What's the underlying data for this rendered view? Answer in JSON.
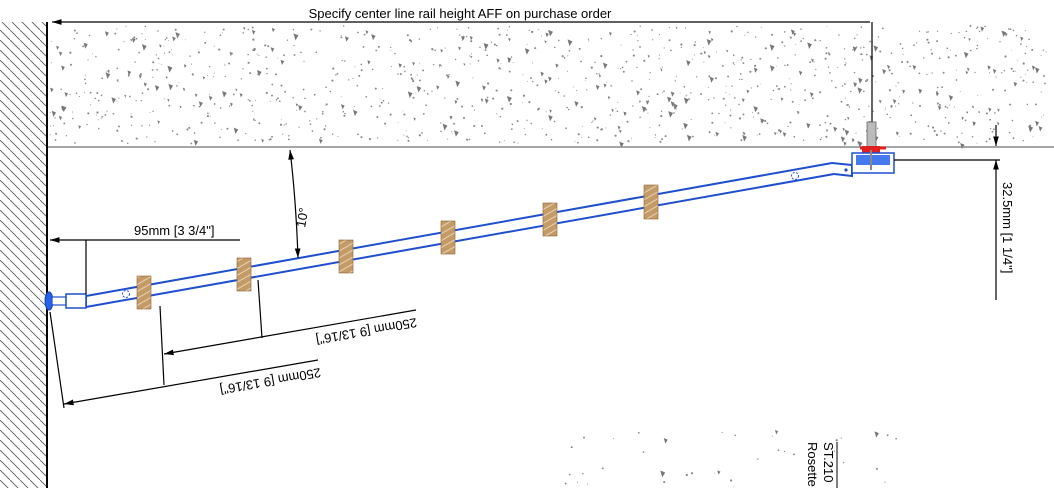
{
  "dimensions": {
    "top_note": "Specify center line rail height AFF on purchase order",
    "wall_offset": "95mm [3 3/4\"]",
    "angle": "10°",
    "spacing_inner": "250mm [9 13/16\"]",
    "spacing_outer": "250mm [9 13/16\"]",
    "ceiling_offset": "32.5mm [1 1/4\"]"
  },
  "callout": {
    "code": "ST.210",
    "name": "Rosette"
  },
  "colors": {
    "rail": "#1f4fd0",
    "connector": "#2563eb",
    "wood_block": "#b98a55",
    "mount_red": "#e02020",
    "concrete_speck": "#777777",
    "wall_hatch": "#555555"
  }
}
